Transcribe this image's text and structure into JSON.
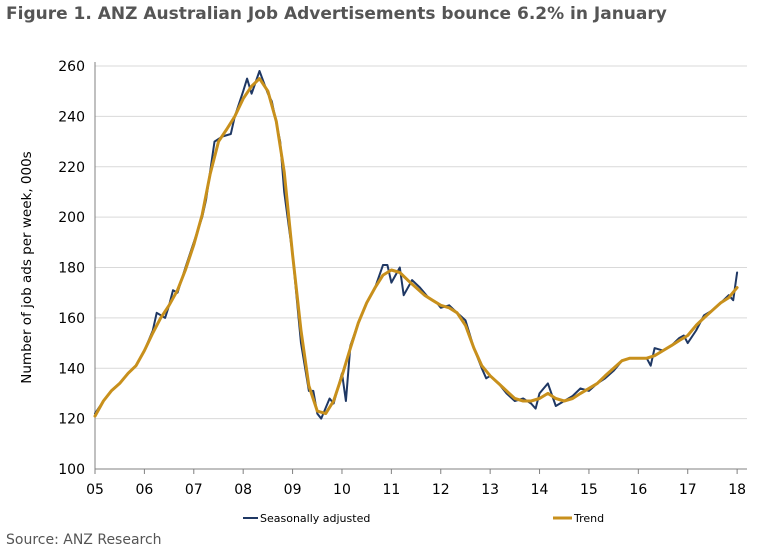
{
  "title": "Figure 1. ANZ Australian Job Advertisements bounce 6.2% in January",
  "source": "Source: ANZ Research",
  "chart_data": {
    "type": "line",
    "title": "",
    "xlabel": "",
    "ylabel": "Number of job ads per week, 000s",
    "xlim": [
      2005,
      2018.2
    ],
    "ylim": [
      100,
      260
    ],
    "y_ticks": [
      100,
      120,
      140,
      160,
      180,
      200,
      220,
      240,
      260
    ],
    "x_ticks": [
      {
        "value": 2005,
        "label": "05"
      },
      {
        "value": 2006,
        "label": "06"
      },
      {
        "value": 2007,
        "label": "07"
      },
      {
        "value": 2008,
        "label": "08"
      },
      {
        "value": 2009,
        "label": "09"
      },
      {
        "value": 2010,
        "label": "10"
      },
      {
        "value": 2011,
        "label": "11"
      },
      {
        "value": 2012,
        "label": "12"
      },
      {
        "value": 2013,
        "label": "13"
      },
      {
        "value": 2014,
        "label": "14"
      },
      {
        "value": 2015,
        "label": "15"
      },
      {
        "value": 2016,
        "label": "16"
      },
      {
        "value": 2017,
        "label": "17"
      },
      {
        "value": 2018,
        "label": "18"
      }
    ],
    "grid": "horizontal",
    "legend": "bottom",
    "series": [
      {
        "name": "Seasonally adjusted",
        "color": "#1f3864",
        "points": [
          [
            2005.0,
            122
          ],
          [
            2005.17,
            127
          ],
          [
            2005.33,
            131
          ],
          [
            2005.5,
            134
          ],
          [
            2005.67,
            138
          ],
          [
            2005.83,
            141
          ],
          [
            2006.0,
            147
          ],
          [
            2006.17,
            155
          ],
          [
            2006.25,
            162
          ],
          [
            2006.42,
            160
          ],
          [
            2006.5,
            165
          ],
          [
            2006.58,
            171
          ],
          [
            2006.67,
            170
          ],
          [
            2006.83,
            180
          ],
          [
            2007.0,
            190
          ],
          [
            2007.17,
            200
          ],
          [
            2007.25,
            207
          ],
          [
            2007.42,
            230
          ],
          [
            2007.58,
            232
          ],
          [
            2007.75,
            233
          ],
          [
            2007.83,
            240
          ],
          [
            2008.0,
            250
          ],
          [
            2008.08,
            255
          ],
          [
            2008.17,
            249
          ],
          [
            2008.33,
            258
          ],
          [
            2008.5,
            249
          ],
          [
            2008.58,
            246
          ],
          [
            2008.75,
            230
          ],
          [
            2008.83,
            210
          ],
          [
            2009.0,
            185
          ],
          [
            2009.17,
            150
          ],
          [
            2009.33,
            131
          ],
          [
            2009.42,
            131
          ],
          [
            2009.5,
            122
          ],
          [
            2009.58,
            120
          ],
          [
            2009.75,
            128
          ],
          [
            2009.83,
            126
          ],
          [
            2010.0,
            138
          ],
          [
            2010.08,
            127
          ],
          [
            2010.17,
            149
          ],
          [
            2010.33,
            158
          ],
          [
            2010.5,
            166
          ],
          [
            2010.67,
            172
          ],
          [
            2010.83,
            181
          ],
          [
            2010.92,
            181
          ],
          [
            2011.0,
            174
          ],
          [
            2011.17,
            180
          ],
          [
            2011.25,
            169
          ],
          [
            2011.42,
            175
          ],
          [
            2011.58,
            172
          ],
          [
            2011.75,
            168
          ],
          [
            2011.92,
            166
          ],
          [
            2012.0,
            164
          ],
          [
            2012.17,
            165
          ],
          [
            2012.33,
            162
          ],
          [
            2012.5,
            159
          ],
          [
            2012.67,
            148
          ],
          [
            2012.83,
            140
          ],
          [
            2012.92,
            136
          ],
          [
            2013.0,
            137
          ],
          [
            2013.17,
            134
          ],
          [
            2013.33,
            130
          ],
          [
            2013.5,
            127
          ],
          [
            2013.67,
            128
          ],
          [
            2013.83,
            126
          ],
          [
            2013.92,
            124
          ],
          [
            2014.0,
            130
          ],
          [
            2014.17,
            134
          ],
          [
            2014.33,
            125
          ],
          [
            2014.5,
            127
          ],
          [
            2014.67,
            129
          ],
          [
            2014.83,
            132
          ],
          [
            2015.0,
            131
          ],
          [
            2015.17,
            134
          ],
          [
            2015.33,
            136
          ],
          [
            2015.5,
            139
          ],
          [
            2015.67,
            143
          ],
          [
            2015.83,
            144
          ],
          [
            2016.0,
            144
          ],
          [
            2016.17,
            144
          ],
          [
            2016.25,
            141
          ],
          [
            2016.33,
            148
          ],
          [
            2016.5,
            147
          ],
          [
            2016.67,
            149
          ],
          [
            2016.83,
            152
          ],
          [
            2016.92,
            153
          ],
          [
            2017.0,
            150
          ],
          [
            2017.17,
            155
          ],
          [
            2017.33,
            161
          ],
          [
            2017.5,
            163
          ],
          [
            2017.67,
            166
          ],
          [
            2017.83,
            169
          ],
          [
            2017.92,
            167
          ],
          [
            2018.0,
            178
          ]
        ]
      },
      {
        "name": "Trend",
        "color": "#c8901c",
        "points": [
          [
            2005.0,
            121
          ],
          [
            2005.17,
            127
          ],
          [
            2005.33,
            131
          ],
          [
            2005.5,
            134
          ],
          [
            2005.67,
            138
          ],
          [
            2005.83,
            141
          ],
          [
            2006.0,
            147
          ],
          [
            2006.17,
            154
          ],
          [
            2006.33,
            160
          ],
          [
            2006.5,
            165
          ],
          [
            2006.67,
            171
          ],
          [
            2006.83,
            179
          ],
          [
            2007.0,
            189
          ],
          [
            2007.17,
            201
          ],
          [
            2007.33,
            217
          ],
          [
            2007.5,
            230
          ],
          [
            2007.67,
            235
          ],
          [
            2007.83,
            240
          ],
          [
            2008.0,
            247
          ],
          [
            2008.17,
            252
          ],
          [
            2008.33,
            255
          ],
          [
            2008.5,
            250
          ],
          [
            2008.67,
            238
          ],
          [
            2008.83,
            218
          ],
          [
            2009.0,
            185
          ],
          [
            2009.17,
            155
          ],
          [
            2009.33,
            133
          ],
          [
            2009.5,
            123
          ],
          [
            2009.67,
            122
          ],
          [
            2009.83,
            127
          ],
          [
            2010.0,
            137
          ],
          [
            2010.17,
            148
          ],
          [
            2010.33,
            158
          ],
          [
            2010.5,
            166
          ],
          [
            2010.67,
            172
          ],
          [
            2010.83,
            177
          ],
          [
            2011.0,
            179
          ],
          [
            2011.17,
            178
          ],
          [
            2011.33,
            175
          ],
          [
            2011.5,
            172
          ],
          [
            2011.67,
            169
          ],
          [
            2011.83,
            167
          ],
          [
            2012.0,
            165
          ],
          [
            2012.17,
            164
          ],
          [
            2012.33,
            162
          ],
          [
            2012.5,
            157
          ],
          [
            2012.67,
            148
          ],
          [
            2012.83,
            141
          ],
          [
            2013.0,
            137
          ],
          [
            2013.17,
            134
          ],
          [
            2013.33,
            131
          ],
          [
            2013.5,
            128
          ],
          [
            2013.67,
            127
          ],
          [
            2013.83,
            127
          ],
          [
            2014.0,
            128
          ],
          [
            2014.17,
            130
          ],
          [
            2014.33,
            128
          ],
          [
            2014.5,
            127
          ],
          [
            2014.67,
            128
          ],
          [
            2014.83,
            130
          ],
          [
            2015.0,
            132
          ],
          [
            2015.17,
            134
          ],
          [
            2015.33,
            137
          ],
          [
            2015.5,
            140
          ],
          [
            2015.67,
            143
          ],
          [
            2015.83,
            144
          ],
          [
            2016.0,
            144
          ],
          [
            2016.17,
            144
          ],
          [
            2016.33,
            145
          ],
          [
            2016.5,
            147
          ],
          [
            2016.67,
            149
          ],
          [
            2016.83,
            151
          ],
          [
            2017.0,
            153
          ],
          [
            2017.17,
            157
          ],
          [
            2017.33,
            160
          ],
          [
            2017.5,
            163
          ],
          [
            2017.67,
            166
          ],
          [
            2017.83,
            168
          ],
          [
            2018.0,
            172
          ]
        ]
      }
    ]
  }
}
